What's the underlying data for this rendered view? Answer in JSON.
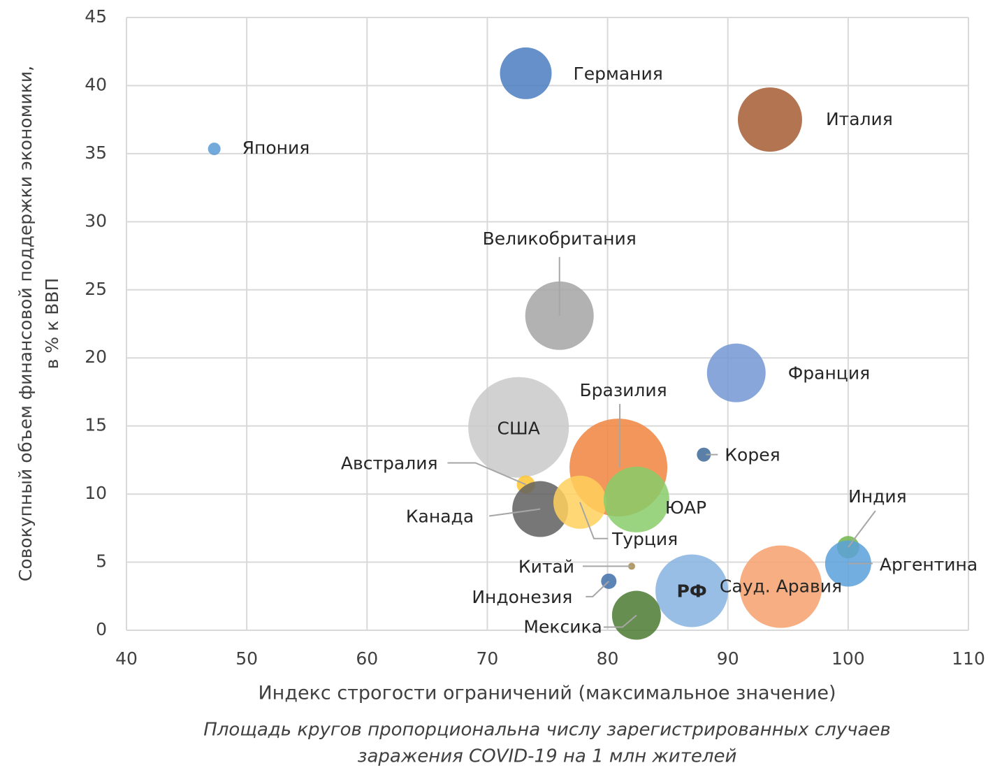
{
  "chart_data": {
    "type": "bubble",
    "ylabel": [
      "Совокупный объем финансовой поддержки экономики,",
      "в % к ВВП"
    ],
    "xlabel": "Индекс строгости ограничений (максимальное значение)",
    "note": [
      "Площадь кругов пропорциональна числу зарегистрированных случаев",
      "заражения COVID-19 на 1 млн жителей"
    ],
    "xlim": [
      40,
      110
    ],
    "xticks": [
      40,
      50,
      60,
      70,
      80,
      90,
      100,
      110
    ],
    "ylim": [
      0,
      45
    ],
    "yticks": [
      0,
      5,
      10,
      15,
      20,
      25,
      30,
      35,
      40,
      45
    ],
    "grid": true,
    "series": [
      {
        "name": "Япония",
        "color": "#5b9bd5",
        "x": [
          47.3
        ],
        "values": [
          35.35
        ],
        "size": [
          81
        ]
      },
      {
        "name": "Германия",
        "color": "#4a7cc0",
        "x": [
          73.2
        ],
        "values": [
          40.9
        ],
        "size": [
          1369
        ]
      },
      {
        "name": "Италия",
        "color": "#a65c33",
        "x": [
          93.5
        ],
        "values": [
          37.5
        ],
        "size": [
          2116
        ]
      },
      {
        "name": "Великобритания",
        "color": "#a5a5a5",
        "x": [
          76.0
        ],
        "values": [
          23.1
        ],
        "size": [
          2401
        ]
      },
      {
        "name": "Франция",
        "color": "#7396d2",
        "x": [
          90.7
        ],
        "values": [
          18.9
        ],
        "size": [
          1764
        ]
      },
      {
        "name": "США",
        "color": "#c9c9c9",
        "x": [
          72.6
        ],
        "values": [
          14.9
        ],
        "size": [
          5184
        ]
      },
      {
        "name": "Бразилия",
        "color": "#f0843f",
        "x": [
          80.9
        ],
        "values": [
          11.95
        ],
        "size": [
          4900
        ]
      },
      {
        "name": "Корея",
        "color": "#3e6a99",
        "x": [
          88.0
        ],
        "values": [
          12.9
        ],
        "size": [
          100
        ]
      },
      {
        "name": "Австралия",
        "color": "#ffc533",
        "x": [
          73.2
        ],
        "values": [
          10.7
        ],
        "size": [
          169
        ]
      },
      {
        "name": "Канада",
        "color": "#5f5f5f",
        "x": [
          74.4
        ],
        "values": [
          8.9
        ],
        "size": [
          1600
        ]
      },
      {
        "name": "Турция",
        "color": "#ffd05c",
        "x": [
          77.7
        ],
        "values": [
          9.4
        ],
        "size": [
          1444
        ]
      },
      {
        "name": "ЮАР",
        "color": "#88cc6a",
        "x": [
          82.4
        ],
        "values": [
          9.6
        ],
        "size": [
          2209
        ]
      },
      {
        "name": "Индия",
        "color": "#70b54b",
        "x": [
          100.0
        ],
        "values": [
          6.1
        ],
        "size": [
          256
        ]
      },
      {
        "name": "Аргентина",
        "color": "#5ba0db",
        "x": [
          100.0
        ],
        "values": [
          4.9
        ],
        "size": [
          1089
        ]
      },
      {
        "name": "Китай",
        "color": "#a58a4c",
        "x": [
          82.0
        ],
        "values": [
          4.7
        ],
        "size": [
          25
        ]
      },
      {
        "name": "Индонезия",
        "color": "#3f70a8",
        "x": [
          80.1
        ],
        "values": [
          3.6
        ],
        "size": [
          121
        ]
      },
      {
        "name": "РФ",
        "color": "#87b3e0",
        "x": [
          87.0
        ],
        "values": [
          2.9
        ],
        "size": [
          2704
        ]
      },
      {
        "name": "Сауд. Аравия",
        "color": "#f4a06c",
        "x": [
          94.4
        ],
        "values": [
          3.2
        ],
        "size": [
          3481
        ]
      },
      {
        "name": "Мексика",
        "color": "#4a7a31",
        "x": [
          82.4
        ],
        "values": [
          1.1
        ],
        "size": [
          1225
        ]
      }
    ]
  }
}
